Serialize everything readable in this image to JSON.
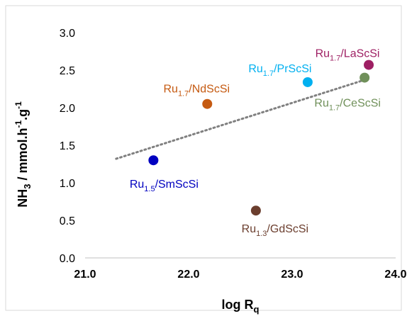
{
  "chart_data": {
    "type": "scatter",
    "title": "",
    "xlabel": {
      "main": "log R",
      "sub": "q"
    },
    "ylabel": {
      "base": "NH",
      "sub1": "3",
      "mid": " / mmol.h",
      "sup1": "-1",
      "mid2": ".g",
      "sup2": "-1"
    },
    "xlim": [
      21.0,
      24.0
    ],
    "ylim": [
      0.0,
      3.0
    ],
    "xticks": [
      "21.0",
      "22.0",
      "23.0",
      "24.0"
    ],
    "yticks": [
      "0.0",
      "0.5",
      "1.0",
      "1.5",
      "2.0",
      "2.5",
      "3.0"
    ],
    "grid": false,
    "trendline": {
      "style": "dotted",
      "color": "#808080",
      "x": [
        21.3,
        23.7
      ],
      "y": [
        1.32,
        2.37
      ]
    },
    "points": [
      {
        "x": 21.66,
        "y": 1.3,
        "color": "#0000c0",
        "label": {
          "pre": "Ru",
          "sub": "1.5",
          "post": "/SmScSi"
        }
      },
      {
        "x": 22.18,
        "y": 2.05,
        "color": "#c55a11",
        "label": {
          "pre": "Ru",
          "sub": "1.7",
          "post": "/NdScSi"
        }
      },
      {
        "x": 22.65,
        "y": 0.63,
        "color": "#6b3e2e",
        "label": {
          "pre": "Ru",
          "sub": "1.3",
          "post": "/GdScSi"
        }
      },
      {
        "x": 23.15,
        "y": 2.34,
        "color": "#00b0f0",
        "label": {
          "pre": "Ru",
          "sub": "1.7",
          "post": "/PrScSi"
        }
      },
      {
        "x": 23.7,
        "y": 2.4,
        "color": "#70905a",
        "label": {
          "pre": "Ru",
          "sub": "1.7",
          "post": "/CeScSi"
        }
      },
      {
        "x": 23.74,
        "y": 2.57,
        "color": "#9e1f63",
        "label": {
          "pre": "Ru",
          "sub": "1.7",
          "post": "/LaScSi"
        }
      }
    ]
  }
}
